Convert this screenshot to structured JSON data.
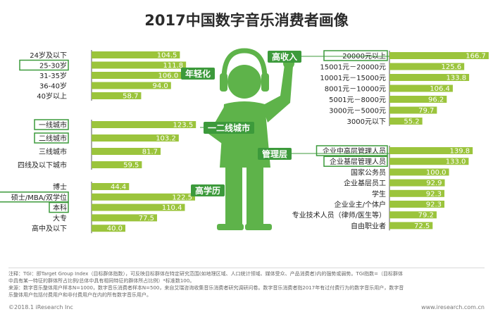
{
  "title": "2017中国数字音乐消费者画像",
  "colors": {
    "bar": "#9bc43c",
    "dark": "#3c9a3b",
    "figure": "#5eb34a",
    "label_bg": "#3c9a3b",
    "value_text": "#ffffff"
  },
  "chart_data": {
    "type": "bar",
    "groups": [
      {
        "name": "年轻化",
        "side": "left",
        "categories": [
          "24岁及以下",
          "25-30岁",
          "31-35岁",
          "36-40岁",
          "40岁以上"
        ],
        "values": [
          104.5,
          111.8,
          106.0,
          94.0,
          58.7
        ],
        "highlighted": [
          "25-30岁"
        ]
      },
      {
        "name": "一二线城市",
        "side": "left",
        "categories": [
          "一线城市",
          "二线城市",
          "三线城市",
          "四线及以下城市"
        ],
        "values": [
          123.5,
          103.2,
          81.7,
          59.5
        ],
        "highlighted": [
          "一线城市",
          "二线城市"
        ]
      },
      {
        "name": "高学历",
        "side": "left",
        "categories": [
          "博士",
          "硕士/MBA/双学位",
          "本科",
          "大专",
          "高中及以下"
        ],
        "values": [
          44.4,
          122.5,
          110.4,
          77.5,
          40.0
        ],
        "highlighted": [
          "硕士/MBA/双学位",
          "本科"
        ]
      },
      {
        "name": "高收入",
        "side": "right",
        "categories": [
          "20000元以上",
          "15001元－20000元",
          "10001元－15000元",
          "8001元－10000元",
          "5001元－8000元",
          "3000元－5000元",
          "3000元以下"
        ],
        "values": [
          166.7,
          125.6,
          133.8,
          106.4,
          96.2,
          79.7,
          55.2
        ],
        "highlighted": [
          "20000元以上"
        ]
      },
      {
        "name": "管理层",
        "side": "right",
        "categories": [
          "企业中高层管理人员",
          "企业基层管理人员",
          "国家公务员",
          "企业基层员工",
          "学生",
          "企业业主/个体户",
          "专业技术人员（律师/医生等）",
          "自由职业者"
        ],
        "values": [
          139.8,
          133.0,
          100.0,
          92.9,
          92.3,
          92.3,
          79.2,
          72.5
        ],
        "highlighted": [
          "企业中高层管理人员",
          "企业基层管理人员"
        ]
      }
    ]
  },
  "notes": {
    "line1": "注释：TGI：即Target Group Index（目标群体指数），可反映目标群体在特定研究范围(如地理区域、人口统计领域、媒体受众、产品消费者)内的强势或弱势。TGI指数=（目标群体",
    "line2": "中具有某一特征的群体所占比例/总体中具有相同特征的群体所占比例）*标准数100。",
    "line3": "来源：数字音乐整体用户样本N=1000，数字音乐消费者样本N=500，来自艾瑞咨询收集音乐消费者研究调研问卷。数字音乐消费者指2017年有过付费行为的数字音乐用户，数字音",
    "line4": "乐整体用户包括付费用户和非付费用户在内的所有数字音乐用户。"
  },
  "footer": {
    "left": "©2018.1 iResearch Inc",
    "right": "www.iresearch.com.cn"
  }
}
